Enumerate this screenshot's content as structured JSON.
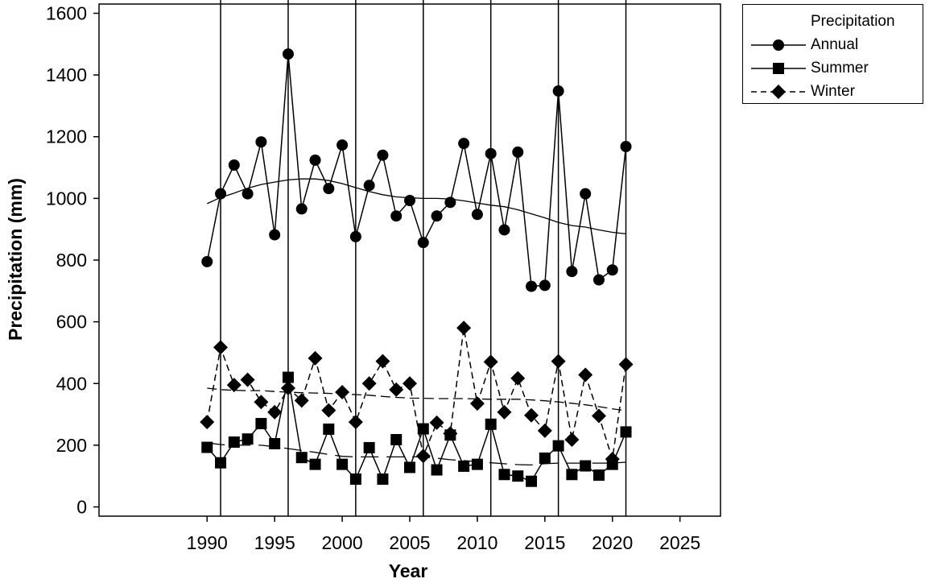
{
  "chart_data": {
    "type": "line",
    "xlabel": "Year",
    "ylabel": "Precipitation (mm)",
    "xlim": [
      1982,
      2028
    ],
    "ylim": [
      -30,
      1630
    ],
    "xticks": [
      1990,
      1995,
      2000,
      2005,
      2010,
      2015,
      2020,
      2025
    ],
    "yticks": [
      0,
      200,
      400,
      600,
      800,
      1000,
      1200,
      1400,
      1600
    ],
    "grid": false,
    "legend": {
      "title": "Precipitation",
      "placement": "top-right outside"
    },
    "vertical_lines": [
      1991,
      1996,
      2001,
      2006,
      2011,
      2016,
      2021
    ],
    "x": [
      1990,
      1991,
      1992,
      1993,
      1994,
      1995,
      1996,
      1997,
      1998,
      1999,
      2000,
      2001,
      2002,
      2003,
      2004,
      2005,
      2006,
      2007,
      2008,
      2009,
      2010,
      2011,
      2012,
      2013,
      2014,
      2015,
      2016,
      2017,
      2018,
      2019,
      2020,
      2021
    ],
    "series": [
      {
        "name": "Annual",
        "marker": "circle",
        "line": "solid",
        "values": [
          795,
          1015,
          1108,
          1015,
          1183,
          882,
          1468,
          966,
          1124,
          1032,
          1173,
          876,
          1042,
          1140,
          943,
          993,
          857,
          943,
          987,
          1178,
          948,
          1145,
          898,
          1150,
          715,
          718,
          1348,
          763,
          1015,
          736,
          768,
          1168
        ],
        "trend": [
          983,
          1003,
          1017,
          1033,
          1045,
          1053,
          1060,
          1063,
          1063,
          1058,
          1048,
          1035,
          1022,
          1012,
          1005,
          1002,
          1000,
          1000,
          998,
          992,
          985,
          978,
          973,
          963,
          950,
          937,
          922,
          912,
          907,
          898,
          890,
          885
        ]
      },
      {
        "name": "Summer",
        "marker": "square",
        "line": "solid",
        "values": [
          193,
          143,
          210,
          220,
          270,
          205,
          420,
          160,
          138,
          252,
          138,
          90,
          192,
          90,
          218,
          128,
          253,
          120,
          233,
          132,
          138,
          268,
          105,
          100,
          83,
          158,
          198,
          105,
          133,
          103,
          138,
          243
        ],
        "trend": [
          208,
          202,
          200,
          200,
          200,
          195,
          189,
          183,
          177,
          170,
          164,
          162,
          162,
          162,
          162,
          162,
          162,
          158,
          153,
          150,
          147,
          143,
          140,
          137,
          136,
          140,
          142,
          142,
          142,
          142,
          142,
          145
        ]
      },
      {
        "name": "Winter",
        "marker": "diamond",
        "line": "dashed",
        "values": [
          275,
          517,
          395,
          412,
          340,
          307,
          385,
          345,
          482,
          313,
          372,
          275,
          400,
          472,
          380,
          400,
          165,
          273,
          238,
          580,
          335,
          470,
          307,
          417,
          297,
          247,
          472,
          218,
          428,
          295,
          155,
          462
        ],
        "trend": [
          385,
          380,
          378,
          377,
          377,
          374,
          372,
          370,
          369,
          368,
          366,
          364,
          362,
          358,
          355,
          353,
          352,
          351,
          351,
          351,
          350,
          349,
          349,
          349,
          347,
          344,
          340,
          336,
          331,
          325,
          318,
          312
        ]
      }
    ]
  }
}
